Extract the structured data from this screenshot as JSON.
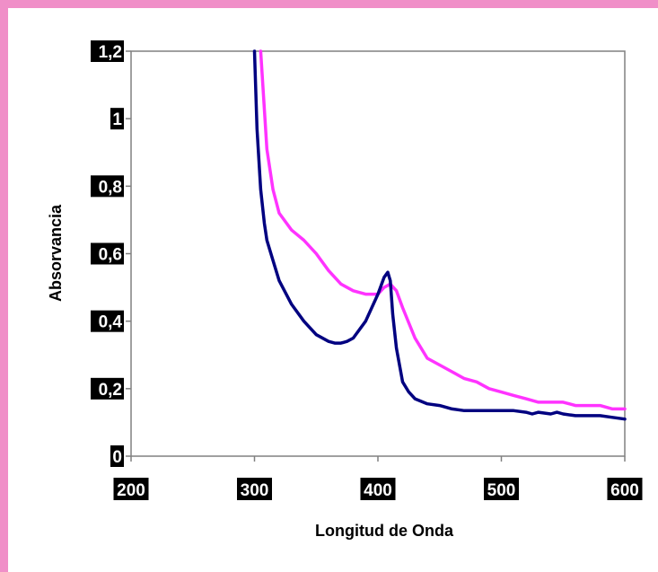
{
  "chart_data": {
    "type": "line",
    "title": "",
    "xlabel": "Longitud de Onda",
    "ylabel": "Absorvancia",
    "xlim": [
      200,
      600
    ],
    "ylim": [
      0,
      1.2
    ],
    "x_ticks": [
      "200",
      "300",
      "400",
      "500",
      "600"
    ],
    "y_ticks": [
      "0",
      "0,2",
      "0,4",
      "0,6",
      "0,8",
      "1",
      "1,2"
    ],
    "grid": false,
    "legend": "none",
    "series": [
      {
        "color": "#ff33ff",
        "x": [
          305,
          310,
          315,
          320,
          330,
          340,
          350,
          360,
          370,
          380,
          390,
          400,
          405,
          410,
          415,
          420,
          430,
          440,
          450,
          460,
          470,
          480,
          490,
          500,
          510,
          520,
          530,
          540,
          550,
          560,
          570,
          580,
          590,
          600
        ],
        "y": [
          1.2,
          0.91,
          0.79,
          0.72,
          0.67,
          0.64,
          0.6,
          0.55,
          0.51,
          0.49,
          0.48,
          0.48,
          0.5,
          0.51,
          0.49,
          0.44,
          0.35,
          0.29,
          0.27,
          0.25,
          0.23,
          0.22,
          0.2,
          0.19,
          0.18,
          0.17,
          0.16,
          0.16,
          0.16,
          0.15,
          0.15,
          0.15,
          0.14,
          0.14
        ]
      },
      {
        "color": "#000080",
        "x": [
          300,
          302,
          305,
          308,
          310,
          315,
          320,
          330,
          340,
          350,
          360,
          365,
          370,
          375,
          380,
          390,
          400,
          405,
          408,
          410,
          412,
          415,
          420,
          425,
          430,
          440,
          450,
          460,
          470,
          480,
          490,
          500,
          510,
          520,
          525,
          530,
          540,
          545,
          550,
          560,
          570,
          580,
          590,
          600
        ],
        "y": [
          1.2,
          0.97,
          0.79,
          0.69,
          0.64,
          0.58,
          0.52,
          0.45,
          0.4,
          0.36,
          0.34,
          0.335,
          0.335,
          0.34,
          0.35,
          0.4,
          0.48,
          0.53,
          0.545,
          0.52,
          0.42,
          0.32,
          0.22,
          0.19,
          0.17,
          0.155,
          0.15,
          0.14,
          0.135,
          0.135,
          0.135,
          0.135,
          0.135,
          0.13,
          0.125,
          0.13,
          0.125,
          0.13,
          0.125,
          0.12,
          0.12,
          0.12,
          0.115,
          0.11
        ]
      }
    ]
  }
}
